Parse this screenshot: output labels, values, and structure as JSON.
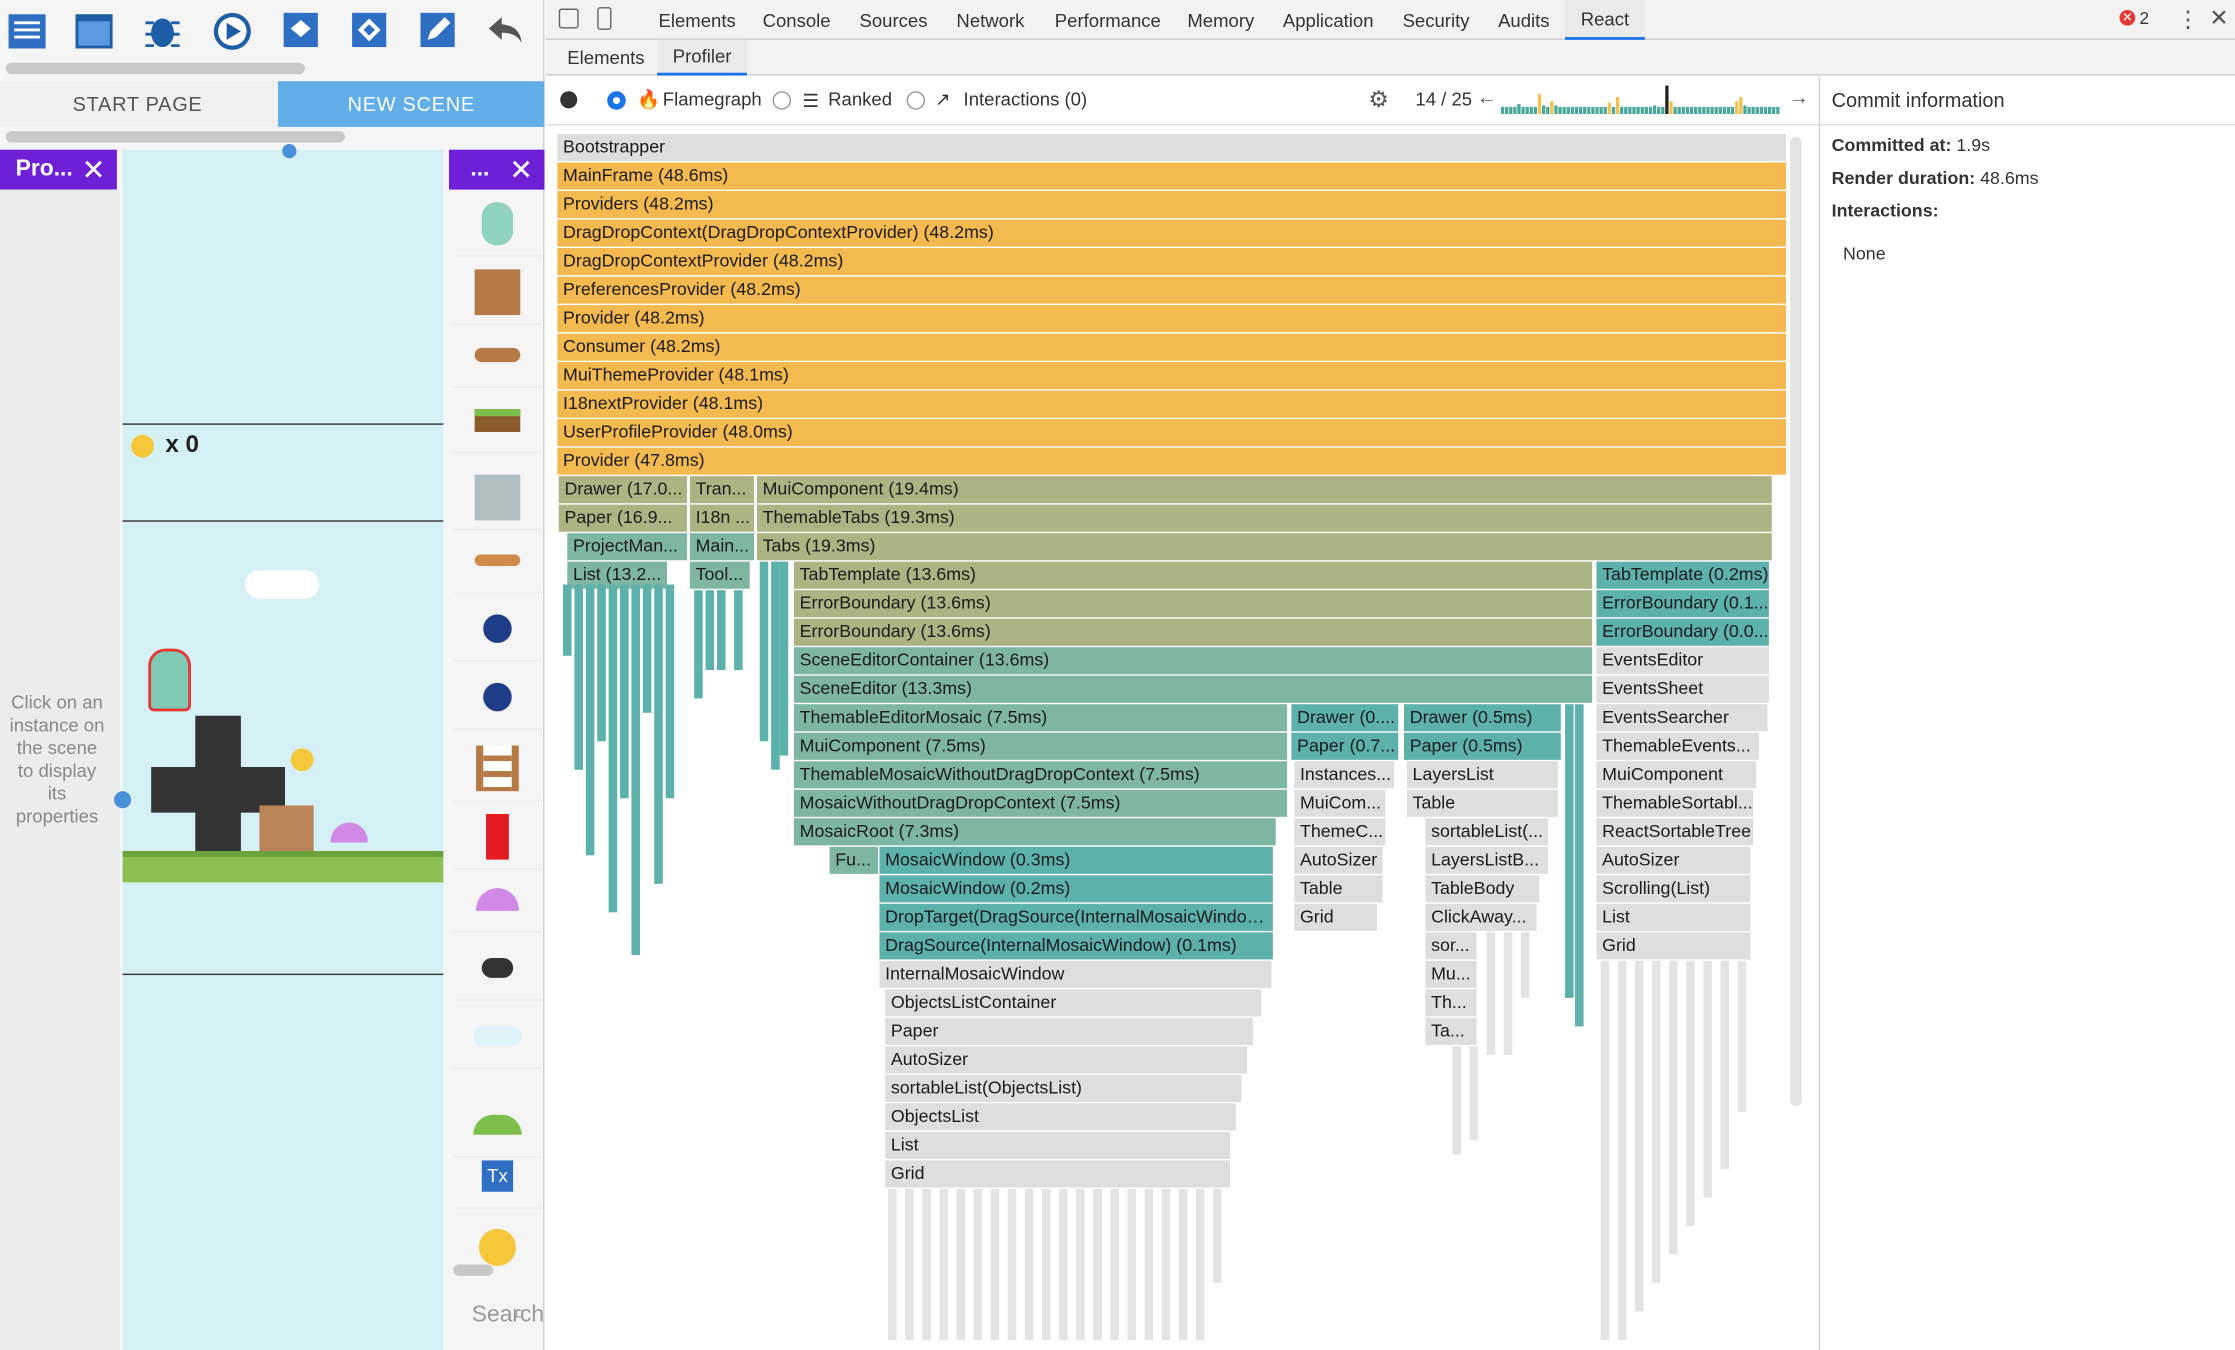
{
  "editor": {
    "tabs": [
      "START PAGE",
      "NEW SCENE"
    ],
    "props_title": "Pro...",
    "objects_title": "...",
    "coin_counter": "x 0",
    "props_hint": "Click on an instance on the scene to display its properties",
    "search_placeholder": "Search",
    "toolbar_icons": [
      "project-manager-icon",
      "scene-editor-icon",
      "debugger-icon",
      "preview-icon",
      "layers-icon",
      "objects-icon",
      "edit-icon",
      "undo-icon"
    ]
  },
  "devtools": {
    "tabs": [
      "Elements",
      "Console",
      "Sources",
      "Network",
      "Performance",
      "Memory",
      "Application",
      "Security",
      "Audits",
      "React"
    ],
    "active_tab": "React",
    "error_count": "2",
    "subtabs": [
      "Elements",
      "Profiler"
    ],
    "active_subtab": "Profiler",
    "views": {
      "flamegraph": "Flamegraph",
      "ranked": "Ranked",
      "interactions": "Interactions (0)"
    },
    "commit_position": "14 / 25",
    "commit_bars": [
      5,
      5,
      5,
      5,
      7,
      5,
      5,
      5,
      5,
      14,
      6,
      5,
      9,
      6,
      5,
      5,
      5,
      5,
      5,
      5,
      5,
      5,
      5,
      5,
      5,
      5,
      8,
      5,
      12,
      5,
      5,
      5,
      5,
      5,
      5,
      5,
      5,
      6,
      5,
      5,
      20,
      9,
      5,
      5,
      5,
      5,
      5,
      5,
      5,
      5,
      5,
      5,
      5,
      5,
      5,
      5,
      5,
      9,
      12,
      6,
      5,
      5,
      5,
      5,
      5,
      5,
      5,
      5
    ],
    "commit_info": {
      "heading": "Commit information",
      "committed_label": "Committed at:",
      "committed_value": "1.9s",
      "render_label": "Render duration:",
      "render_value": "48.6ms",
      "interactions_label": "Interactions:",
      "interactions_value": "None"
    },
    "flame": [
      [
        "Bootstrapper",
        "MainFrame (48.6ms)",
        "Providers (48.2ms)",
        "DragDropContext(DragDropContextProvider) (48.2ms)",
        "DragDropContextProvider (48.2ms)",
        "PreferencesProvider (48.2ms)",
        "Provider (48.2ms)",
        "Consumer (48.2ms)",
        "MuiThemeProvider (48.1ms)",
        "I18nextProvider (48.1ms)",
        "UserProfileProvider (48.0ms)",
        "Provider (47.8ms)"
      ],
      [
        "Drawer (17.0...",
        "Paper (16.9...",
        "ProjectMan...",
        "List (13.2..."
      ],
      [
        "Tran...",
        "I18n ...",
        "Main...",
        "Tool..."
      ],
      [
        "MuiComponent (19.4ms)",
        "ThemableTabs (19.3ms)",
        "Tabs (19.3ms)"
      ],
      [
        "TabTemplate (13.6ms)",
        "ErrorBoundary (13.6ms)",
        "ErrorBoundary (13.6ms)",
        "SceneEditorContainer (13.6ms)",
        "SceneEditor (13.3ms)",
        "ThemableEditorMosaic (7.5ms)",
        "MuiComponent (7.5ms)",
        "ThemableMosaicWithoutDragDropContext (7.5ms)",
        "MosaicWithoutDragDropContext (7.5ms)",
        "MosaicRoot (7.3ms)"
      ],
      [
        "Fu...",
        "MosaicWindow (0.3ms)",
        "MosaicWindow (0.2ms)",
        "DropTarget(DragSource(InternalMosaicWindow)...",
        "DragSource(InternalMosaicWindow) (0.1ms)",
        "InternalMosaicWindow",
        "ObjectsListContainer",
        "Paper",
        "AutoSizer",
        "sortableList(ObjectsList)",
        "ObjectsList",
        "List",
        "Grid"
      ],
      [
        "Drawer (0....",
        "Paper (0.7...",
        "Instances...",
        "MuiCom...",
        "ThemeC...",
        "AutoSizer",
        "Table",
        "Grid"
      ],
      [
        "Drawer (0.5ms)",
        "Paper (0.5ms)",
        "LayersList",
        "Table",
        "sortableList(...",
        "LayersListB...",
        "TableBody",
        "ClickAway...",
        "sor...",
        "Mu...",
        "Th...",
        "Ta..."
      ],
      [
        "TabTemplate (0.2ms)",
        "ErrorBoundary (0.1...",
        "ErrorBoundary (0.0...",
        "EventsEditor",
        "EventsSheet",
        "EventsSearcher",
        "ThemableEvents...",
        "MuiComponent",
        "ThemableSortabl...",
        "ReactSortableTree",
        "AutoSizer",
        "Scrolling(List)",
        "List",
        "Grid"
      ]
    ]
  }
}
